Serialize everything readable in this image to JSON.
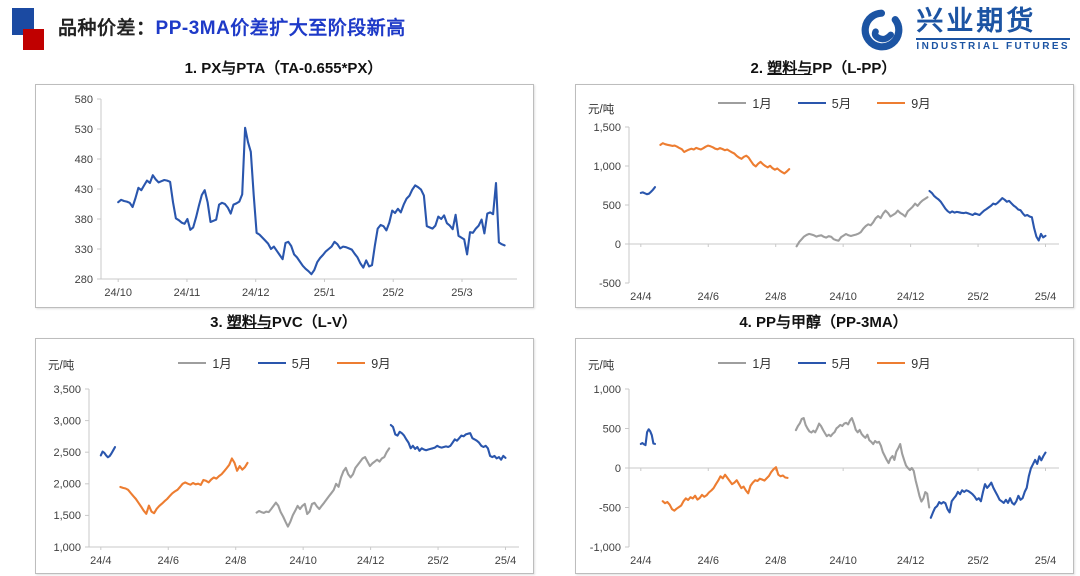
{
  "header": {
    "section_label": "品种价差：",
    "headline": "PP-3MA价差扩大至阶段新高",
    "headline_color": "#1e3ac8",
    "logo": {
      "cn": "兴业期货",
      "en": "INDUSTRIAL FUTURES",
      "color": "#1c54a3"
    }
  },
  "colors": {
    "series_blue": "#2a56ad",
    "series_orange": "#ed7d31",
    "series_gray": "#9e9e9e",
    "axis_line": "#c9c9c9",
    "tick_text": "#404040",
    "brand_red": "#c00000",
    "brand_navy": "#1b4aa2"
  },
  "chart_data": [
    {
      "type": "line",
      "title": "1. PX与PTA（TA-0.655*PX）",
      "unit": "",
      "legend": [],
      "ylim": [
        280,
        580
      ],
      "yticks": [
        280,
        330,
        380,
        430,
        480,
        530,
        580
      ],
      "xlim": [
        -0.25,
        5.8
      ],
      "xticks": [
        {
          "pos": 0,
          "label": "24/10"
        },
        {
          "pos": 1,
          "label": "24/11"
        },
        {
          "pos": 2,
          "label": "24/12"
        },
        {
          "pos": 3,
          "label": "25/1"
        },
        {
          "pos": 4,
          "label": "25/2"
        },
        {
          "pos": 5,
          "label": "25/3"
        }
      ],
      "series": [
        {
          "name": "TA-0.655*PX",
          "color": "#2a56ad",
          "x0": 0,
          "x1": 5.62,
          "values": [
            408,
            412,
            410,
            409,
            407,
            400,
            415,
            432,
            428,
            436,
            444,
            440,
            453,
            446,
            441,
            443,
            445,
            444,
            442,
            408,
            381,
            378,
            374,
            372,
            380,
            362,
            366,
            383,
            402,
            420,
            428,
            408,
            375,
            377,
            379,
            404,
            407,
            405,
            399,
            389,
            404,
            406,
            409,
            421,
            532,
            508,
            492,
            420,
            357,
            354,
            349,
            344,
            339,
            330,
            334,
            327,
            320,
            313,
            340,
            342,
            335,
            321,
            316,
            309,
            302,
            297,
            293,
            288,
            295,
            308,
            315,
            320,
            326,
            330,
            334,
            342,
            338,
            331,
            334,
            333,
            331,
            329,
            322,
            316,
            306,
            299,
            311,
            301,
            303,
            336,
            364,
            370,
            368,
            361,
            374,
            394,
            390,
            397,
            391,
            404,
            414,
            419,
            429,
            436,
            433,
            429,
            419,
            368,
            366,
            364,
            369,
            384,
            380,
            386,
            373,
            369,
            363,
            387,
            352,
            349,
            346,
            321,
            358,
            357,
            364,
            369,
            379,
            356,
            389,
            391,
            388,
            440,
            341,
            338,
            336
          ]
        }
      ]
    },
    {
      "type": "line",
      "title": "2. 塑料与PP（L-PP）",
      "title_underline": "塑料与",
      "unit": "元/吨",
      "legend": [
        {
          "label": "1月",
          "color": "#9e9e9e"
        },
        {
          "label": "5月",
          "color": "#2a56ad"
        },
        {
          "label": "9月",
          "color": "#ed7d31"
        }
      ],
      "ylim": [
        -500,
        1500
      ],
      "yticks": [
        -500,
        0,
        500,
        1000,
        1500
      ],
      "xlim": [
        -0.35,
        12.4
      ],
      "xticks": [
        {
          "pos": 0,
          "label": "24/4"
        },
        {
          "pos": 2,
          "label": "24/6"
        },
        {
          "pos": 4,
          "label": "24/8"
        },
        {
          "pos": 6,
          "label": "24/10"
        },
        {
          "pos": 8,
          "label": "24/12"
        },
        {
          "pos": 10,
          "label": "25/2"
        },
        {
          "pos": 12,
          "label": "25/4"
        }
      ],
      "series": [
        {
          "name": "5月",
          "color": "#2a56ad",
          "x0": 0,
          "x1": 0.42,
          "values": [
            655,
            662,
            650,
            638,
            645,
            668,
            695,
            730
          ]
        },
        {
          "name": "9月",
          "color": "#ed7d31",
          "x0": 0.58,
          "x1": 4.4,
          "values": [
            1270,
            1292,
            1280,
            1272,
            1265,
            1258,
            1262,
            1248,
            1230,
            1215,
            1180,
            1196,
            1210,
            1222,
            1212,
            1232,
            1222,
            1212,
            1228,
            1248,
            1262,
            1252,
            1240,
            1222,
            1214,
            1230,
            1218,
            1202,
            1212,
            1192,
            1176,
            1160,
            1130,
            1108,
            1092,
            1118,
            1132,
            1108,
            1062,
            1018,
            995,
            1030,
            1052,
            1022,
            1000,
            982,
            1002,
            972,
            952,
            968,
            942,
            922,
            905,
            930,
            960
          ]
        },
        {
          "name": "1月",
          "color": "#9e9e9e",
          "x0": 4.62,
          "x1": 8.5,
          "values": [
            -30,
            25,
            60,
            95,
            115,
            130,
            122,
            112,
            95,
            105,
            112,
            92,
            82,
            100,
            92,
            62,
            50,
            42,
            88,
            108,
            128,
            112,
            102,
            112,
            120,
            132,
            152,
            198,
            230,
            252,
            240,
            278,
            330,
            358,
            332,
            388,
            428,
            398,
            352,
            372,
            392,
            428,
            398,
            378,
            352,
            418,
            448,
            478,
            518,
            488,
            528,
            558,
            578,
            600
          ]
        },
        {
          "name": "5月",
          "color": "#2a56ad",
          "x0": 8.56,
          "x1": 12.0,
          "values": [
            680,
            655,
            618,
            592,
            570,
            540,
            498,
            452,
            420,
            400,
            418,
            402,
            412,
            406,
            400,
            396,
            402,
            392,
            382,
            372,
            392,
            382,
            372,
            400,
            428,
            448,
            468,
            488,
            518,
            508,
            528,
            558,
            588,
            568,
            542,
            552,
            522,
            492,
            472,
            442,
            432,
            392,
            362,
            372,
            352,
            342,
            205,
            95,
            45,
            130,
            85,
            105
          ]
        }
      ]
    },
    {
      "type": "line",
      "title": "3. 塑料与PVC（L-V）",
      "title_underline": "塑料与",
      "unit": "元/吨",
      "legend": [
        {
          "label": "1月",
          "color": "#9e9e9e"
        },
        {
          "label": "5月",
          "color": "#2a56ad"
        },
        {
          "label": "9月",
          "color": "#ed7d31"
        }
      ],
      "ylim": [
        1000,
        3500
      ],
      "yticks": [
        1000,
        1500,
        2000,
        2500,
        3000,
        3500
      ],
      "xlim": [
        -0.35,
        12.4
      ],
      "xticks": [
        {
          "pos": 0,
          "label": "24/4"
        },
        {
          "pos": 2,
          "label": "24/6"
        },
        {
          "pos": 4,
          "label": "24/8"
        },
        {
          "pos": 6,
          "label": "24/10"
        },
        {
          "pos": 8,
          "label": "24/12"
        },
        {
          "pos": 10,
          "label": "25/2"
        },
        {
          "pos": 12,
          "label": "25/4"
        }
      ],
      "series": [
        {
          "name": "5月",
          "color": "#2a56ad",
          "x0": 0,
          "x1": 0.42,
          "values": [
            2450,
            2510,
            2490,
            2450,
            2420,
            2440,
            2480,
            2530,
            2580
          ]
        },
        {
          "name": "9月",
          "color": "#ed7d31",
          "x0": 0.58,
          "x1": 4.35,
          "values": [
            1950,
            1935,
            1925,
            1905,
            1855,
            1805,
            1760,
            1700,
            1640,
            1575,
            1525,
            1655,
            1560,
            1535,
            1605,
            1650,
            1685,
            1725,
            1760,
            1805,
            1850,
            1880,
            1905,
            1950,
            2000,
            2022,
            2002,
            1985,
            2012,
            1992,
            2002,
            1982,
            2060,
            2048,
            2022,
            2068,
            2100,
            2082,
            2122,
            2152,
            2200,
            2250,
            2302,
            2400,
            2332,
            2205,
            2280,
            2225,
            2262,
            2330
          ]
        },
        {
          "name": "1月",
          "color": "#9e9e9e",
          "x0": 4.62,
          "x1": 8.55,
          "values": [
            1545,
            1570,
            1552,
            1540,
            1560,
            1552,
            1600,
            1650,
            1702,
            1652,
            1552,
            1482,
            1400,
            1322,
            1402,
            1502,
            1572,
            1650,
            1602,
            1652,
            1682,
            1522,
            1562,
            1680,
            1700,
            1642,
            1602,
            1652,
            1700,
            1752,
            1802,
            1852,
            1902,
            2000,
            1952,
            2100,
            2200,
            2252,
            2152,
            2102,
            2152,
            2252,
            2302,
            2352,
            2402,
            2422,
            2352,
            2282,
            2322,
            2352,
            2382,
            2352,
            2402,
            2422,
            2502,
            2560
          ]
        },
        {
          "name": "5月",
          "color": "#2a56ad",
          "x0": 8.6,
          "x1": 12.0,
          "values": [
            2930,
            2900,
            2782,
            2762,
            2822,
            2800,
            2762,
            2702,
            2652,
            2562,
            2602,
            2552,
            2582,
            2522,
            2562,
            2542,
            2532,
            2542,
            2552,
            2562,
            2572,
            2602,
            2582,
            2572,
            2582,
            2592,
            2582,
            2602,
            2652,
            2702,
            2682,
            2722,
            2762,
            2752,
            2782,
            2792,
            2800,
            2722,
            2702,
            2682,
            2652,
            2602,
            2582,
            2602,
            2562,
            2442,
            2422,
            2442,
            2402,
            2422,
            2382,
            2442,
            2410
          ]
        }
      ]
    },
    {
      "type": "line",
      "title": "4. PP与甲醇（PP-3MA）",
      "unit": "元/吨",
      "legend": [
        {
          "label": "1月",
          "color": "#9e9e9e"
        },
        {
          "label": "5月",
          "color": "#2a56ad"
        },
        {
          "label": "9月",
          "color": "#ed7d31"
        }
      ],
      "ylim": [
        -1000,
        1000
      ],
      "yticks": [
        -1000,
        -500,
        0,
        500,
        1000
      ],
      "xlim": [
        -0.35,
        12.4
      ],
      "xticks": [
        {
          "pos": 0,
          "label": "24/4"
        },
        {
          "pos": 2,
          "label": "24/6"
        },
        {
          "pos": 4,
          "label": "24/8"
        },
        {
          "pos": 6,
          "label": "24/10"
        },
        {
          "pos": 8,
          "label": "24/12"
        },
        {
          "pos": 10,
          "label": "25/2"
        },
        {
          "pos": 12,
          "label": "25/4"
        }
      ],
      "series": [
        {
          "name": "5月",
          "color": "#2a56ad",
          "x0": 0,
          "x1": 0.42,
          "values": [
            305,
            315,
            300,
            290,
            455,
            490,
            465,
            415,
            310,
            305
          ]
        },
        {
          "name": "9月",
          "color": "#ed7d31",
          "x0": 0.65,
          "x1": 4.35,
          "values": [
            -420,
            -445,
            -430,
            -465,
            -520,
            -540,
            -515,
            -495,
            -475,
            -420,
            -385,
            -405,
            -370,
            -385,
            -350,
            -400,
            -380,
            -340,
            -365,
            -345,
            -310,
            -285,
            -255,
            -205,
            -160,
            -105,
            -130,
            -85,
            -125,
            -165,
            -205,
            -185,
            -155,
            -205,
            -255,
            -235,
            -285,
            -320,
            -225,
            -185,
            -155,
            -165,
            -135,
            -145,
            -160,
            -130,
            -100,
            -50,
            -15,
            10,
            -85,
            -105,
            -95,
            -120,
            -125
          ]
        },
        {
          "name": "1月",
          "color": "#9e9e9e",
          "x0": 4.6,
          "x1": 8.55,
          "values": [
            480,
            530,
            565,
            620,
            632,
            545,
            500,
            462,
            450,
            472,
            452,
            502,
            562,
            532,
            482,
            442,
            402,
            422,
            402,
            432,
            455,
            502,
            522,
            545,
            532,
            562,
            572,
            552,
            602,
            632,
            562,
            482,
            452,
            482,
            432,
            402,
            382,
            422,
            352,
            332,
            302,
            342,
            322,
            332,
            282,
            202,
            152,
            102,
            62,
            122,
            152,
            102,
            205,
            252,
            302,
            182,
            102,
            32,
            0,
            -25,
            0,
            -35,
            -155,
            -255,
            -355,
            -425,
            -385,
            -305,
            -325,
            -500
          ]
        },
        {
          "name": "5月",
          "color": "#2a56ad",
          "x0": 8.6,
          "x1": 12.0,
          "values": [
            -630,
            -565,
            -505,
            -482,
            -432,
            -452,
            -432,
            -445,
            -522,
            -562,
            -422,
            -385,
            -352,
            -302,
            -332,
            -282,
            -302,
            -282,
            -292,
            -312,
            -332,
            -362,
            -402,
            -382,
            -422,
            -302,
            -205,
            -252,
            -222,
            -185,
            -252,
            -302,
            -352,
            -402,
            -422,
            -442,
            -402,
            -442,
            -382,
            -442,
            -462,
            -422,
            -352,
            -402,
            -382,
            -302,
            -252,
            -105,
            -5,
            48,
            102,
            52,
            148,
            98,
            152,
            195
          ]
        }
      ]
    }
  ]
}
